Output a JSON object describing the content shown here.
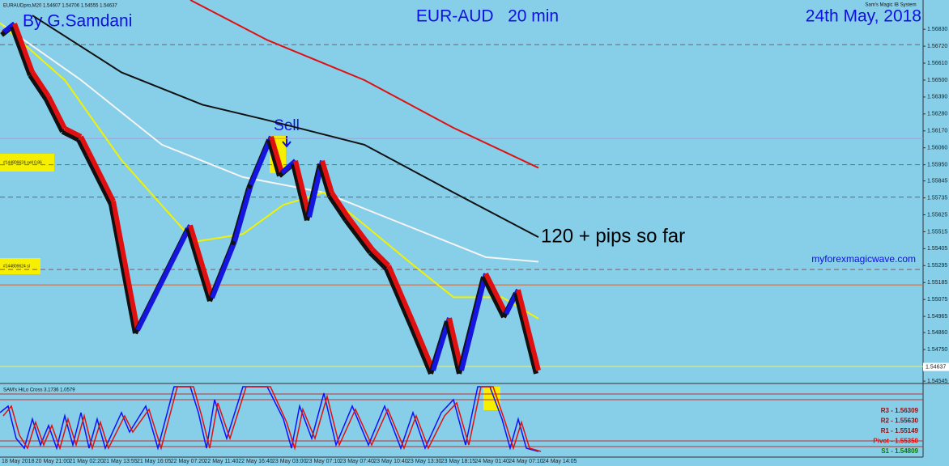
{
  "header": {
    "left": "By G.Samdani",
    "center": "EUR-AUD   20 min",
    "right": "24th May, 2018",
    "symbol_info": "EURAUDpro,M20  1.54607 1.54706 1.54555 1.54637",
    "system": "Sam's Magic IB System"
  },
  "annotations": {
    "sell": "Sell",
    "pips": "120 + pips so far",
    "site": "myforexmagicwave.com",
    "order": "#144809624 sell 0.86",
    "sl": "#144809624 sl"
  },
  "chart_data": {
    "type": "line",
    "xlim": [
      0,
      1140
    ],
    "ylim": [
      1.5454,
      1.5702
    ],
    "yticks": [
      {
        "value": 1.5683,
        "label": "1.56830"
      },
      {
        "value": 1.5672,
        "label": "1.56720"
      },
      {
        "value": 1.5661,
        "label": "1.56610"
      },
      {
        "value": 1.565,
        "label": "1.56500"
      },
      {
        "value": 1.5639,
        "label": "1.56390"
      },
      {
        "value": 1.5628,
        "label": "1.56280"
      },
      {
        "value": 1.5617,
        "label": "1.56170"
      },
      {
        "value": 1.5606,
        "label": "1.56060"
      },
      {
        "value": 1.5595,
        "label": "1.55950"
      },
      {
        "value": 1.55845,
        "label": "1.55845"
      },
      {
        "value": 1.55735,
        "label": "1.55735"
      },
      {
        "value": 1.55625,
        "label": "1.55625"
      },
      {
        "value": 1.55515,
        "label": "1.55515"
      },
      {
        "value": 1.55405,
        "label": "1.55405"
      },
      {
        "value": 1.55295,
        "label": "1.55295"
      },
      {
        "value": 1.55185,
        "label": "1.55185"
      },
      {
        "value": 1.55075,
        "label": "1.55075"
      },
      {
        "value": 1.54965,
        "label": "1.54965"
      },
      {
        "value": 1.5486,
        "label": "1.54860"
      },
      {
        "value": 1.5475,
        "label": "1.54750"
      },
      {
        "value": 1.54545,
        "label": "1.54545"
      }
    ],
    "x_labels": [
      "18 May 2018",
      "20 May 21:00",
      "21 May 02:20",
      "21 May 13:55",
      "21 May 16:05",
      "22 May 07:20",
      "22 May 11:40",
      "22 May 16:40",
      "23 May 03:00",
      "23 May 07:10",
      "23 May 07:40",
      "23 May 10:40",
      "23 May 13:30",
      "23 May 18:15",
      "24 May 01:40",
      "24 May 07:10",
      "24 May 14:05"
    ],
    "price": {
      "x": [
        5,
        18,
        40,
        60,
        80,
        100,
        110,
        140,
        170,
        235,
        262,
        290,
        310,
        335,
        348,
        365,
        382,
        398,
        410,
        430,
        460,
        480,
        510,
        535,
        555,
        570,
        600,
        625,
        640,
        665
      ],
      "values": [
        1.56814,
        1.56867,
        1.56552,
        1.56395,
        1.56186,
        1.56133,
        1.56029,
        1.55714,
        1.54876,
        1.55557,
        1.55086,
        1.55452,
        1.55819,
        1.56133,
        1.55898,
        1.55976,
        1.5561,
        1.55976,
        1.55767,
        1.5561,
        1.554,
        1.55295,
        1.54929,
        1.54614,
        1.54955,
        1.54614,
        1.55243,
        1.54981,
        1.55138,
        1.54614
      ]
    },
    "moving_averages": [
      {
        "color": "#e01010",
        "x": [
          235,
          330,
          450,
          560,
          665
        ],
        "values": [
          1.5702,
          1.5676,
          1.565,
          1.5619,
          1.5593
        ]
      },
      {
        "color": "#111111",
        "x": [
          40,
          150,
          250,
          330,
          450,
          560,
          665
        ],
        "values": [
          1.5692,
          1.5655,
          1.5634,
          1.5624,
          1.5608,
          1.5577,
          1.5548
        ]
      },
      {
        "color": "#f4f4f4",
        "x": [
          0,
          100,
          200,
          300,
          400,
          500,
          600,
          665
        ],
        "values": [
          1.5687,
          1.565,
          1.5608,
          1.5587,
          1.5577,
          1.5556,
          1.5535,
          1.5532
        ]
      },
      {
        "color": "#f2f200",
        "x": [
          0,
          80,
          150,
          240,
          300,
          350,
          400,
          450,
          510,
          560,
          620,
          665
        ],
        "values": [
          1.5687,
          1.565,
          1.5598,
          1.5545,
          1.555,
          1.5569,
          1.5577,
          1.5556,
          1.553,
          1.5509,
          1.5509,
          1.5495
        ]
      }
    ],
    "levels": [
      {
        "value": 1.5673,
        "color": "#a0504a",
        "dash": true
      },
      {
        "value": 1.5612,
        "color": "#e080e0",
        "dash": false
      },
      {
        "value": 1.5595,
        "color": "#3a8a5a",
        "dash": true
      },
      {
        "value": 1.5574,
        "color": "#a0504a",
        "dash": true
      },
      {
        "value": 1.5527,
        "color": "#a0504a",
        "dash": true
      },
      {
        "value": 1.5517,
        "color": "#e0602a",
        "dash": false
      },
      {
        "value": 1.5464,
        "color": "#f0f060",
        "dash": false
      }
    ],
    "current": 1.54637
  },
  "indicator": {
    "title": "SAM's HiLo Cross 3.1736 1.0579",
    "ylim": [
      0,
      100
    ],
    "series": [
      {
        "color": "#1010ff",
        "x": [
          0,
          10,
          20,
          30,
          40,
          50,
          60,
          70,
          80,
          90,
          100,
          110,
          120,
          130,
          150,
          160,
          180,
          195,
          215,
          235,
          245,
          255,
          265,
          280,
          300,
          330,
          350,
          360,
          370,
          385,
          400,
          415,
          435,
          455,
          475,
          495,
          510,
          525,
          545,
          560,
          575,
          590,
          605,
          620,
          630,
          640,
          650,
          665
        ],
        "values": [
          60,
          70,
          20,
          5,
          50,
          10,
          40,
          5,
          55,
          10,
          60,
          5,
          50,
          5,
          60,
          30,
          70,
          5,
          100,
          100,
          60,
          5,
          80,
          20,
          100,
          100,
          50,
          5,
          70,
          20,
          90,
          10,
          70,
          10,
          70,
          5,
          60,
          5,
          60,
          80,
          10,
          100,
          100,
          50,
          5,
          50,
          5,
          0
        ]
      },
      {
        "color": "#e01010",
        "x": [
          4,
          14,
          24,
          34,
          44,
          54,
          64,
          74,
          84,
          94,
          104,
          114,
          124,
          134,
          154,
          164,
          184,
          199,
          219,
          239,
          249,
          259,
          269,
          284,
          304,
          334,
          354,
          364,
          374,
          389,
          404,
          419,
          439,
          459,
          479,
          499,
          514,
          529,
          549,
          564,
          579,
          594,
          609,
          624,
          634,
          644,
          654,
          668
        ],
        "values": [
          55,
          70,
          25,
          5,
          45,
          10,
          40,
          5,
          50,
          10,
          55,
          5,
          45,
          5,
          55,
          30,
          65,
          5,
          100,
          100,
          55,
          5,
          75,
          20,
          100,
          100,
          45,
          5,
          65,
          20,
          85,
          10,
          65,
          10,
          65,
          5,
          55,
          5,
          55,
          75,
          10,
          100,
          100,
          45,
          5,
          45,
          5,
          0
        ]
      }
    ],
    "pivots": [
      {
        "label": "R3 - 1.56309",
        "color": "#8b1010"
      },
      {
        "label": "R2 - 1.55630",
        "color": "#8b1010"
      },
      {
        "label": "R1 - 1.55149",
        "color": "#8b1010"
      },
      {
        "label": "Pivot - 1.55350",
        "color": "#e01010"
      },
      {
        "label": "S1 - 1.54809",
        "color": "#0a7a0a"
      }
    ]
  }
}
